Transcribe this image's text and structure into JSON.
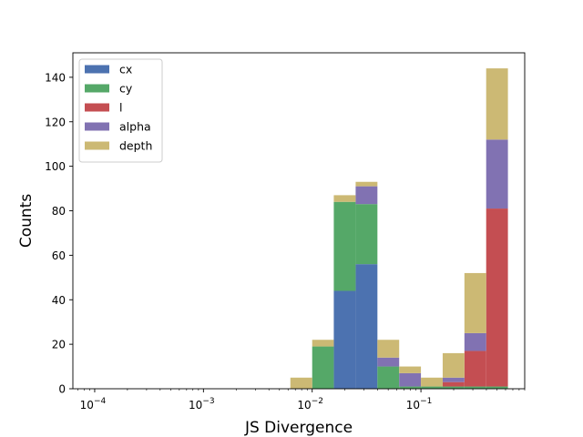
{
  "chart_data": {
    "type": "bar",
    "stacked": true,
    "xscale": "log",
    "xlabel": "JS Divergence",
    "ylabel": "Counts",
    "xlim": [
      6.3e-05,
      0.9
    ],
    "ylim": [
      0,
      151
    ],
    "grid": false,
    "legend_position": "top-left",
    "x_ticks": [
      {
        "value": 0.0001,
        "base": "10",
        "exp": "−4"
      },
      {
        "value": 0.001,
        "base": "10",
        "exp": "−3"
      },
      {
        "value": 0.01,
        "base": "10",
        "exp": "−2"
      },
      {
        "value": 0.1,
        "base": "10",
        "exp": "−1"
      }
    ],
    "y_ticks": [
      0,
      20,
      40,
      60,
      80,
      100,
      120,
      140
    ],
    "bin_edges": [
      0.0063,
      0.01,
      0.0158,
      0.0251,
      0.0398,
      0.0631,
      0.1,
      0.1585,
      0.2512,
      0.3981,
      0.631
    ],
    "series": [
      {
        "name": "cx",
        "color": "#4c72b0",
        "values": [
          0,
          0,
          44,
          56,
          0,
          0,
          0,
          0,
          0,
          0
        ]
      },
      {
        "name": "cy",
        "color": "#55a868",
        "values": [
          0,
          19,
          40,
          27,
          10,
          1,
          1,
          1,
          1,
          1
        ]
      },
      {
        "name": "l",
        "color": "#c44e52",
        "values": [
          0,
          0,
          0,
          0,
          0,
          0,
          0,
          2,
          16,
          80
        ]
      },
      {
        "name": "alpha",
        "color": "#8172b2",
        "values": [
          0,
          0,
          0,
          8,
          4,
          6,
          0,
          2,
          8,
          31
        ]
      },
      {
        "name": "depth",
        "color": "#ccb974",
        "values": [
          5,
          3,
          3,
          2,
          8,
          3,
          4,
          11,
          27,
          32
        ]
      }
    ]
  }
}
